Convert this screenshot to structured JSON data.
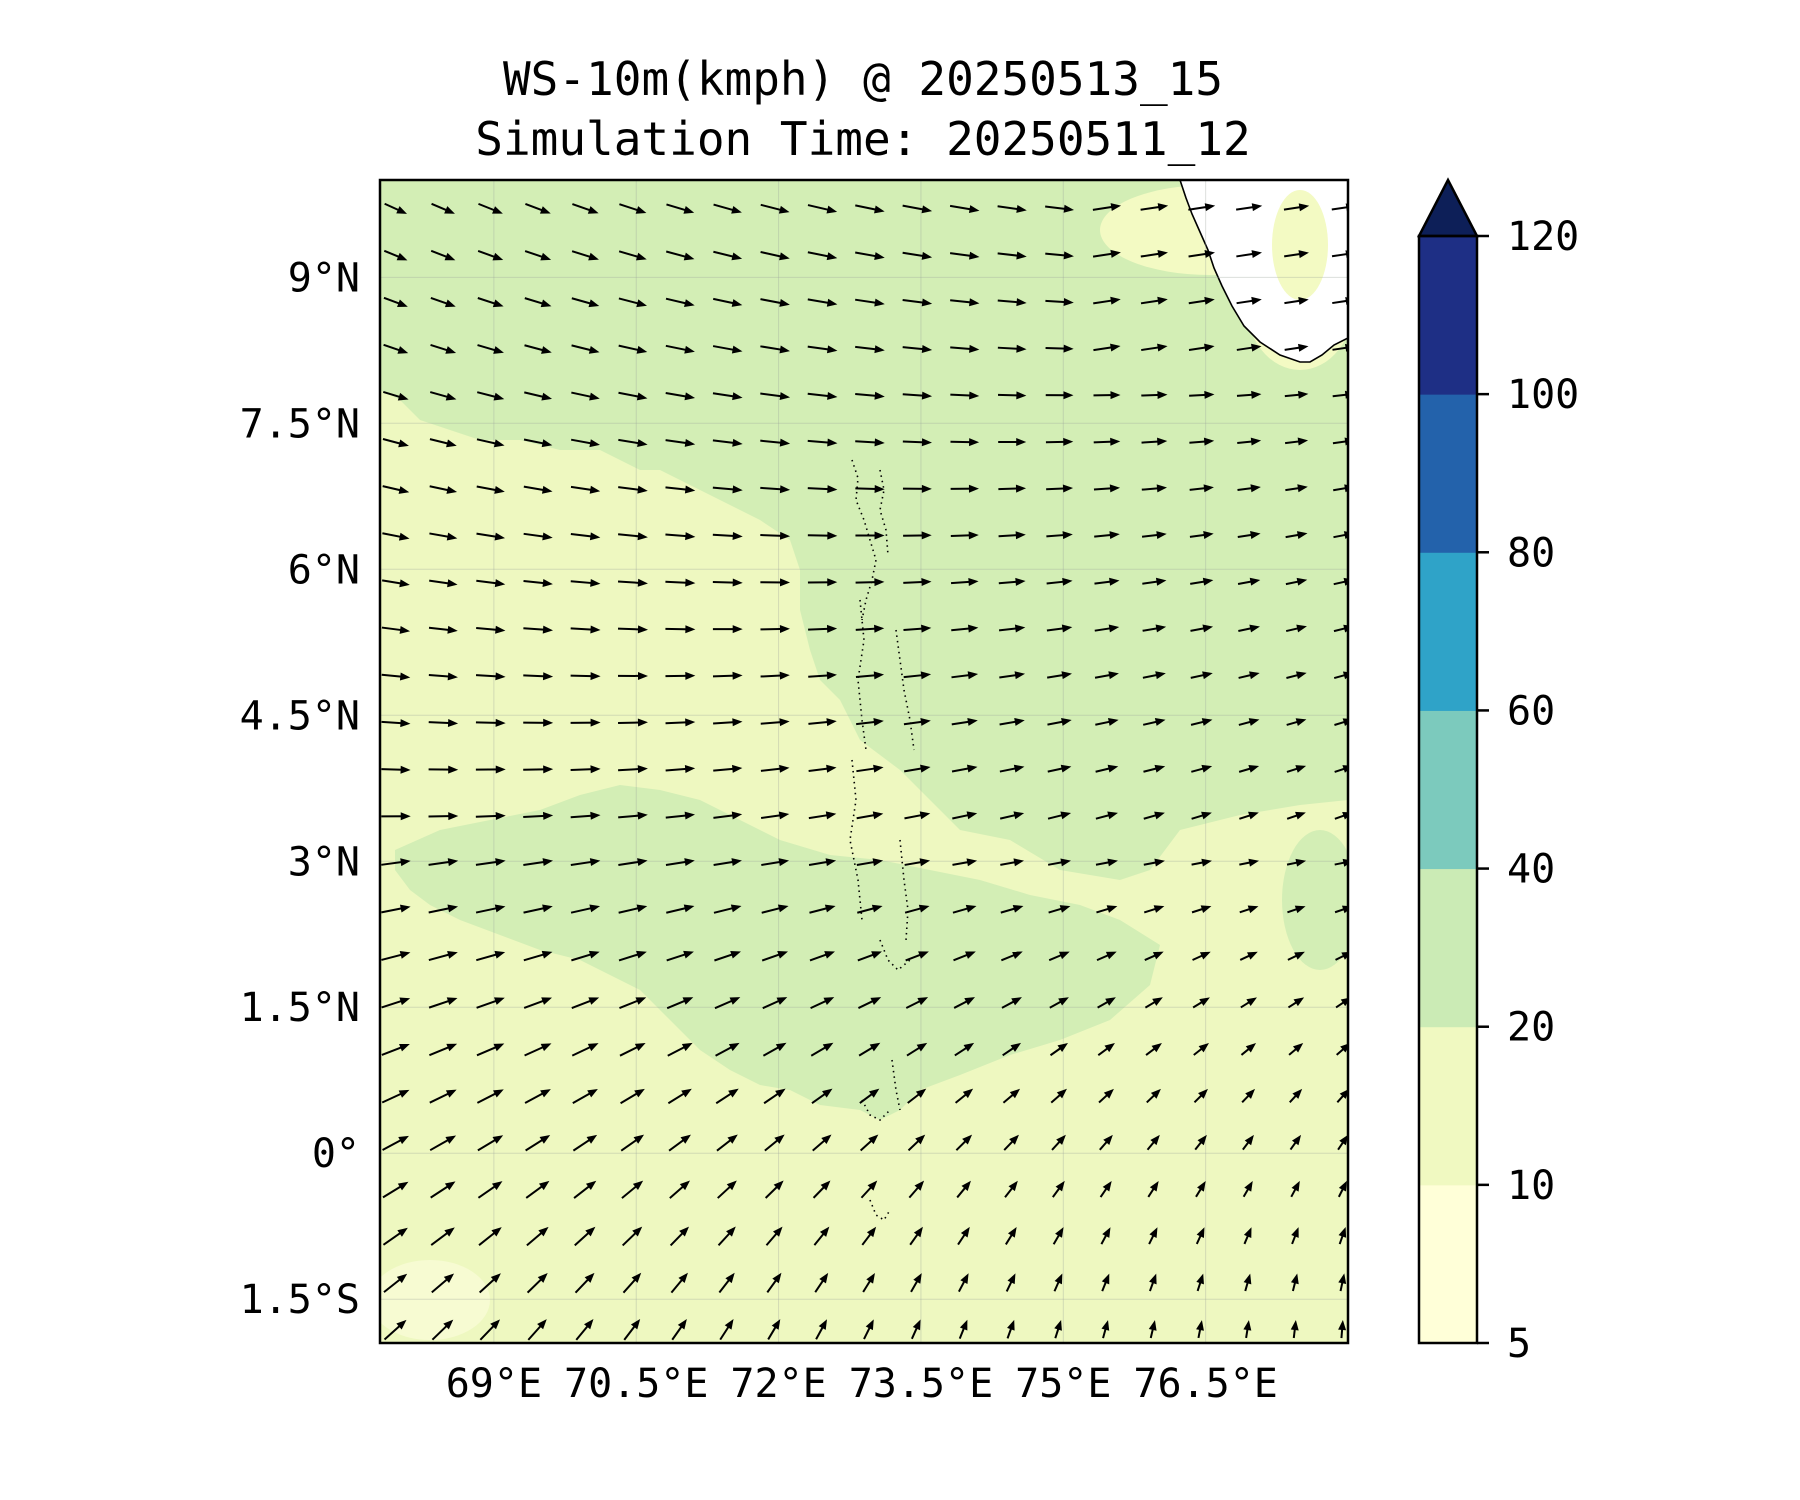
{
  "title": {
    "line1": "WS-10m(kmph) @ 20250513_15",
    "line2": "Simulation Time: 20250511_12"
  },
  "map": {
    "lon_range": [
      67.8,
      78.0
    ],
    "lat_range": [
      -1.95,
      10.0
    ],
    "lat_ticks": [
      {
        "value": 9.0,
        "label": "9°N"
      },
      {
        "value": 7.5,
        "label": "7.5°N"
      },
      {
        "value": 6.0,
        "label": "6°N"
      },
      {
        "value": 4.5,
        "label": "4.5°N"
      },
      {
        "value": 3.0,
        "label": "3°N"
      },
      {
        "value": 1.5,
        "label": "1.5°N"
      },
      {
        "value": 0.0,
        "label": "0°"
      },
      {
        "value": -1.5,
        "label": "1.5°S"
      }
    ],
    "lon_ticks": [
      {
        "value": 69.0,
        "label": "69°E"
      },
      {
        "value": 70.5,
        "label": "70.5°E"
      },
      {
        "value": 72.0,
        "label": "72°E"
      },
      {
        "value": 73.5,
        "label": "73.5°E"
      },
      {
        "value": 75.0,
        "label": "75°E"
      },
      {
        "value": 76.5,
        "label": "76.5°E"
      }
    ],
    "colors": {
      "band_5_10": "#f3fac3",
      "band_10_20": "#eef8c0",
      "band_20_40": "#d3eeb5",
      "land": "#ffffff",
      "coast": "#000000",
      "arrow": "#000000"
    }
  },
  "colorbar": {
    "levels": [
      {
        "value": 5,
        "label": "5"
      },
      {
        "value": 10,
        "label": "10"
      },
      {
        "value": 20,
        "label": "20"
      },
      {
        "value": 40,
        "label": "40"
      },
      {
        "value": 60,
        "label": "60"
      },
      {
        "value": 80,
        "label": "80"
      },
      {
        "value": 100,
        "label": "100"
      },
      {
        "value": 120,
        "label": "120"
      }
    ],
    "colors": [
      "#ffffd8",
      "#f0f9c1",
      "#cbebb5",
      "#7ccabd",
      "#2fa3c8",
      "#2362ab",
      "#1e2f85"
    ],
    "extend_color": "#0d1f58"
  }
}
